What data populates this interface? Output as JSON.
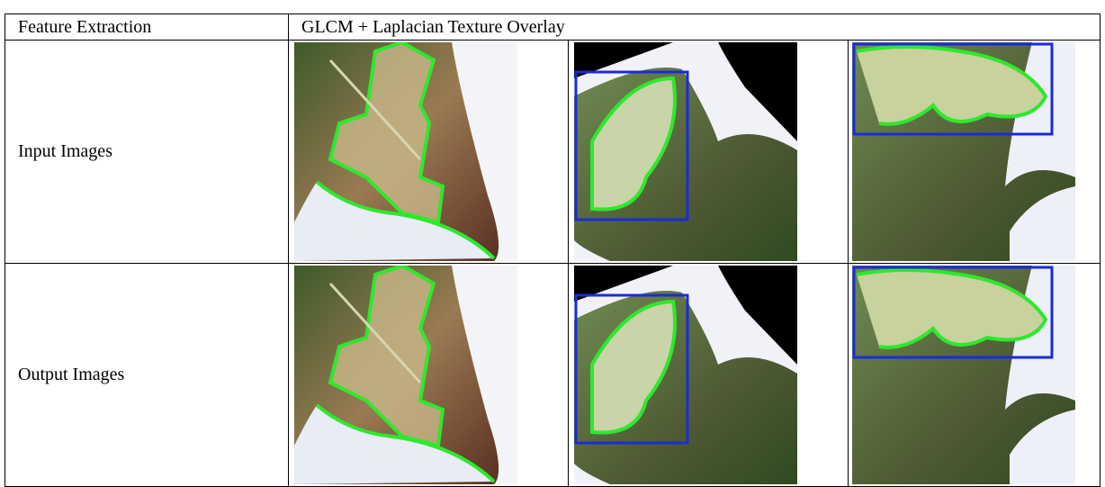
{
  "table": {
    "header": [
      "Feature Extraction",
      "GLCM + Laplacian Texture Overlay"
    ],
    "rows": [
      [
        "Input Images"
      ],
      [
        "Output Images"
      ]
    ]
  }
}
